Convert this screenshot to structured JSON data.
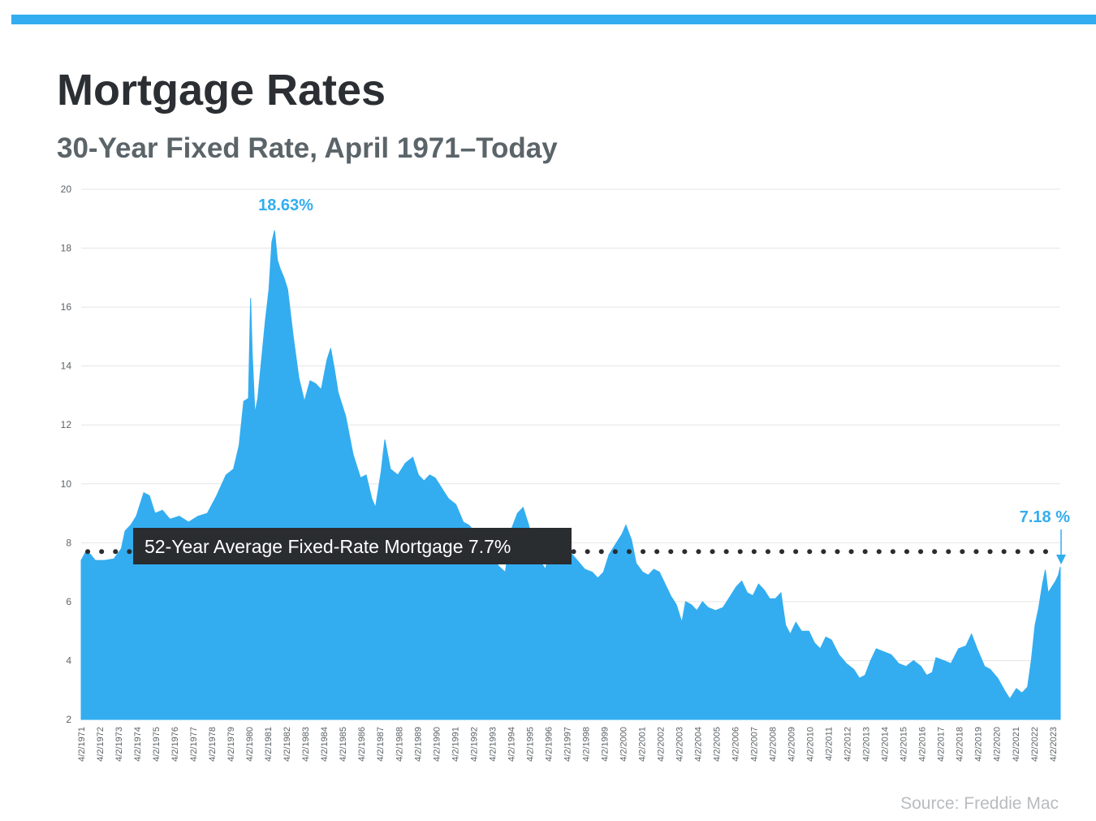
{
  "header": {
    "title": "Mortgage Rates",
    "subtitle": "30-Year Fixed Rate, April 1971–Today"
  },
  "footer": {
    "source": "Source: Freddie Mac"
  },
  "colors": {
    "accent": "#33adf0",
    "area": "#33adf0",
    "label_box": "#2a2d30",
    "dots": "#2a2d30",
    "grid": "#e3e5e7"
  },
  "chart_data": {
    "type": "area",
    "title": "Mortgage Rates",
    "subtitle": "30-Year Fixed Rate, April 1971–Today",
    "xlabel": "",
    "ylabel": "",
    "ylim": [
      2,
      20
    ],
    "xlim": [
      1971.25,
      2023.65
    ],
    "yticks": [
      2,
      4,
      6,
      8,
      10,
      12,
      14,
      16,
      18,
      20
    ],
    "grid": true,
    "legend": "none",
    "xtick_labels": [
      "4/2/1971",
      "4/2/1972",
      "4/2/1973",
      "4/2/1974",
      "4/2/1975",
      "4/2/1976",
      "4/2/1977",
      "4/2/1978",
      "4/2/1979",
      "4/2/1980",
      "4/2/1981",
      "4/2/1982",
      "4/2/1983",
      "4/2/1984",
      "4/2/1985",
      "4/2/1986",
      "4/2/1987",
      "4/2/1988",
      "4/2/1989",
      "4/2/1990",
      "4/2/1991",
      "4/2/1992",
      "4/2/1993",
      "4/2/1994",
      "4/2/1995",
      "4/2/1996",
      "4/2/1997",
      "4/2/1998",
      "4/2/1999",
      "4/2/2000",
      "4/2/2001",
      "4/2/2002",
      "4/2/2003",
      "4/2/2004",
      "4/2/2005",
      "4/2/2006",
      "4/2/2007",
      "4/2/2008",
      "4/2/2009",
      "4/2/2010",
      "4/2/2011",
      "4/2/2012",
      "4/2/2013",
      "4/2/2014",
      "4/2/2015",
      "4/2/2016",
      "4/2/2017",
      "4/2/2018",
      "4/2/2019",
      "4/2/2020",
      "4/2/2021",
      "4/2/2022",
      "4/2/2023"
    ],
    "series": [
      {
        "x": [
          1971.25,
          1971.5,
          1971.75,
          1972.0,
          1972.5,
          1973.0,
          1973.4,
          1973.6,
          1973.9,
          1974.2,
          1974.6,
          1974.9,
          1975.2,
          1975.6,
          1976.0,
          1976.5,
          1977.0,
          1977.5,
          1978.0,
          1978.5,
          1979.0,
          1979.4,
          1979.7,
          1979.95,
          1980.2,
          1980.32,
          1980.4,
          1980.55,
          1980.7,
          1980.9,
          1981.1,
          1981.3,
          1981.45,
          1981.6,
          1981.75,
          1981.9,
          1982.1,
          1982.3,
          1982.6,
          1982.9,
          1983.2,
          1983.5,
          1983.8,
          1984.1,
          1984.4,
          1984.6,
          1984.8,
          1985.0,
          1985.4,
          1985.8,
          1986.2,
          1986.5,
          1986.8,
          1987.0,
          1987.3,
          1987.5,
          1987.8,
          1988.2,
          1988.6,
          1989.0,
          1989.3,
          1989.6,
          1989.9,
          1990.2,
          1990.6,
          1990.9,
          1991.3,
          1991.7,
          1992.0,
          1992.4,
          1992.8,
          1993.2,
          1993.6,
          1993.95,
          1994.3,
          1994.6,
          1994.9,
          1995.2,
          1995.5,
          1995.8,
          1996.1,
          1996.4,
          1996.7,
          1997.0,
          1997.4,
          1997.8,
          1998.2,
          1998.6,
          1998.9,
          1999.2,
          1999.5,
          1999.8,
          2000.2,
          2000.4,
          2000.7,
          2000.95,
          2001.3,
          2001.6,
          2001.9,
          2002.2,
          2002.5,
          2002.8,
          2003.1,
          2003.4,
          2003.6,
          2003.9,
          2004.2,
          2004.5,
          2004.8,
          2005.2,
          2005.6,
          2006.0,
          2006.3,
          2006.6,
          2006.9,
          2007.2,
          2007.5,
          2007.8,
          2008.1,
          2008.4,
          2008.7,
          2008.95,
          2009.2,
          2009.5,
          2009.8,
          2010.2,
          2010.5,
          2010.8,
          2011.1,
          2011.4,
          2011.8,
          2012.2,
          2012.6,
          2012.9,
          2013.2,
          2013.5,
          2013.8,
          2014.2,
          2014.6,
          2015.0,
          2015.4,
          2015.8,
          2016.2,
          2016.5,
          2016.8,
          2017.0,
          2017.4,
          2017.8,
          2018.2,
          2018.6,
          2018.9,
          2019.2,
          2019.6,
          2019.9,
          2020.3,
          2020.7,
          2020.95,
          2021.3,
          2021.6,
          2021.9,
          2022.1,
          2022.3,
          2022.5,
          2022.7,
          2022.85,
          2023.0,
          2023.2,
          2023.4,
          2023.55,
          2023.65
        ],
        "y": [
          7.4,
          7.7,
          7.6,
          7.4,
          7.4,
          7.45,
          7.8,
          8.4,
          8.6,
          8.9,
          9.7,
          9.6,
          9.0,
          9.1,
          8.8,
          8.9,
          8.7,
          8.9,
          9.0,
          9.6,
          10.3,
          10.5,
          11.3,
          12.8,
          12.9,
          16.3,
          14.5,
          12.4,
          12.9,
          14.2,
          15.5,
          16.6,
          18.2,
          18.6,
          17.6,
          17.3,
          17.0,
          16.6,
          15.0,
          13.6,
          12.8,
          13.5,
          13.4,
          13.2,
          14.2,
          14.6,
          13.9,
          13.1,
          12.3,
          11.0,
          10.2,
          10.3,
          9.5,
          9.2,
          10.4,
          11.5,
          10.5,
          10.3,
          10.7,
          10.9,
          10.3,
          10.1,
          10.3,
          10.2,
          9.8,
          9.5,
          9.3,
          8.7,
          8.6,
          8.3,
          8.1,
          7.6,
          7.2,
          7.0,
          8.5,
          9.0,
          9.2,
          8.6,
          7.8,
          7.4,
          7.1,
          8.0,
          8.1,
          7.8,
          7.7,
          7.4,
          7.1,
          7.0,
          6.8,
          7.0,
          7.6,
          7.9,
          8.3,
          8.6,
          8.1,
          7.3,
          7.0,
          6.9,
          7.1,
          7.0,
          6.6,
          6.2,
          5.9,
          5.3,
          6.0,
          5.9,
          5.7,
          6.0,
          5.8,
          5.7,
          5.8,
          6.2,
          6.5,
          6.7,
          6.3,
          6.2,
          6.6,
          6.4,
          6.1,
          6.1,
          6.3,
          5.2,
          4.9,
          5.3,
          5.0,
          5.0,
          4.6,
          4.4,
          4.8,
          4.7,
          4.2,
          3.9,
          3.7,
          3.4,
          3.5,
          4.0,
          4.4,
          4.3,
          4.2,
          3.9,
          3.8,
          4.0,
          3.8,
          3.5,
          3.6,
          4.1,
          4.0,
          3.9,
          4.4,
          4.5,
          4.9,
          4.4,
          3.8,
          3.7,
          3.4,
          2.95,
          2.7,
          3.05,
          2.9,
          3.1,
          4.0,
          5.2,
          5.8,
          6.6,
          7.08,
          6.3,
          6.5,
          6.7,
          6.9,
          7.18
        ]
      }
    ],
    "annotations": {
      "peak_label": "18.63%",
      "peak_value": 18.63,
      "peak_x": 1981.65,
      "current_label": "7.18 %",
      "current_value": 7.18,
      "average_label": "52-Year Average Fixed-Rate Mortgage 7.7%",
      "average_value": 7.7
    }
  }
}
